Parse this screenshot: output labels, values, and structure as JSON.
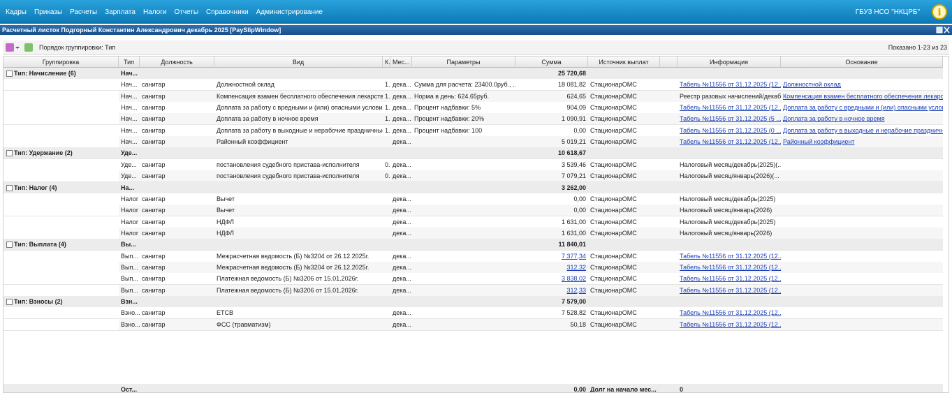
{
  "menu": {
    "items": [
      "Кадры",
      "Приказы",
      "Расчеты",
      "Зарплата",
      "Налоги",
      "Отчеты",
      "Справочники",
      "Администрирование"
    ],
    "org": "ГБУЗ НСО \"НКЦРБ\""
  },
  "window": {
    "title": "Расчетный листок Подгорный Константин Александрович декабрь 2025 [PaySlipWindow]",
    "grouping": "Порядок группировки: Тип",
    "shown": "Показано 1-23 из 23"
  },
  "table": {
    "columns": [
      "Группировка",
      "Тип",
      "Должность",
      "Вид",
      "К.",
      "Мес...",
      "Параметры",
      "Сумма",
      "Источник выплат",
      "Информация",
      "Основание"
    ],
    "groups": [
      {
        "group": "Тип: Начисление (6)",
        "type": "Нач...",
        "sum": "25 720,68",
        "rows": [
          {
            "type": "Нач...",
            "position": "санитар",
            "kind": "Должностной оклад",
            "k": "1.",
            "month": "дека...",
            "params": "Сумма для расчета: 23400.0руб., ...",
            "sum": "18 081,82",
            "source": "СтационарОМС",
            "info": "Табель №11556 от 31.12.2025 (12...",
            "info_link": true,
            "basis": "Должностной оклад"
          },
          {
            "type": "Нач...",
            "position": "санитар",
            "kind": "Компенсация взамен бесплатного обеспечения лекарстве...",
            "k": "1.",
            "month": "дека...",
            "params": "Норма в день: 624.65руб.",
            "sum": "624,65",
            "source": "СтационарОМС",
            "info": "Реестр разовых начислений/декаб...",
            "info_link": false,
            "basis": "Компенсация взамен бесплатного обеспечения лекарств..."
          },
          {
            "type": "Нач...",
            "position": "санитар",
            "kind": "Доплата за работу с вредными и (или) опасными условия...",
            "k": "1.",
            "month": "дека...",
            "params": "Процент надбавки: 5%",
            "sum": "904,09",
            "source": "СтационарОМС",
            "info": "Табель №11556 от 31.12.2025 (12...",
            "info_link": true,
            "basis": "Доплата за работу с вредными и (или) опасными услови..."
          },
          {
            "type": "Нач...",
            "position": "санитар",
            "kind": "Доплата за работу в ночное время",
            "k": "1.",
            "month": "дека...",
            "params": "Процент надбавки: 20%",
            "sum": "1 090,91",
            "source": "СтационарОМС",
            "info": "Табель №11556 от 31.12.2025 (5 ...",
            "info_link": true,
            "basis": "Доплата за работу в ночное время"
          },
          {
            "type": "Нач...",
            "position": "санитар",
            "kind": "Доплата за работу в выходные и нерабочие праздничные ...",
            "k": "1.",
            "month": "дека...",
            "params": "Процент надбавки: 100",
            "sum": "0,00",
            "source": "СтационарОМС",
            "info": "Табель №11556 от 31.12.2025 (0 ...",
            "info_link": true,
            "basis": "Доплата за работу в выходные и нерабочие праздничны..."
          },
          {
            "type": "Нач...",
            "position": "санитар",
            "kind": "Районный коэффициент",
            "month": "дека...",
            "sum": "5 019,21",
            "source": "СтационарОМС",
            "info": "Табель №11556 от 31.12.2025 (12...",
            "info_link": true,
            "basis": "Районный коэффициент"
          }
        ]
      },
      {
        "group": "Тип: Удержание (2)",
        "type": "Уде...",
        "sum": "10 618,67",
        "rows": [
          {
            "type": "Уде...",
            "position": "санитар",
            "kind": "постановления судебного пристава-исполнителя",
            "k": "0.",
            "month": "дека...",
            "sum": "3 539,46",
            "source": "СтационарОМС",
            "info": "Налоговый месяц/декабрь(2025)(...",
            "info_link": false
          },
          {
            "type": "Уде...",
            "position": "санитар",
            "kind": "постановления судебного пристава-исполнителя",
            "k": "0.",
            "month": "дека...",
            "sum": "7 079,21",
            "source": "СтационарОМС",
            "info": "Налоговый месяц/январь(2026)(...",
            "info_link": false
          }
        ]
      },
      {
        "group": "Тип: Налог (4)",
        "type": "На...",
        "sum": "3 262,00",
        "rows": [
          {
            "type": "Налог",
            "position": "санитар",
            "kind": "Вычет",
            "month": "дека...",
            "sum": "0,00",
            "source": "СтационарОМС",
            "info": "Налоговый месяц/декабрь(2025)",
            "info_link": false
          },
          {
            "type": "Налог",
            "position": "санитар",
            "kind": "Вычет",
            "month": "дека...",
            "sum": "0,00",
            "source": "СтационарОМС",
            "info": "Налоговый месяц/январь(2026)",
            "info_link": false
          },
          {
            "type": "Налог",
            "position": "санитар",
            "kind": "НДФЛ",
            "month": "дека...",
            "sum": "1 631,00",
            "source": "СтационарОМС",
            "info": "Налоговый месяц/декабрь(2025)",
            "info_link": false
          },
          {
            "type": "Налог",
            "position": "санитар",
            "kind": "НДФЛ",
            "month": "дека...",
            "sum": "1 631,00",
            "source": "СтационарОМС",
            "info": "Налоговый месяц/январь(2026)",
            "info_link": false
          }
        ]
      },
      {
        "group": "Тип: Выплата (4)",
        "type": "Вы...",
        "sum": "11 840,01",
        "rows": [
          {
            "type": "Вып...",
            "position": "санитар",
            "kind": "Межрасчетная ведомость (Б) №3204 от 26.12.2025г.",
            "month": "дека...",
            "sum": "7 377,34",
            "sum_link": true,
            "source": "СтационарОМС",
            "info": "Табель №11556 от 31.12.2025 (12...",
            "info_link": true
          },
          {
            "type": "Вып...",
            "position": "санитар",
            "kind": "Межрасчетная ведомость (Б) №3204 от 26.12.2025г.",
            "month": "дека...",
            "sum": "312,32",
            "sum_link": true,
            "source": "СтационарОМС",
            "info": "Табель №11556 от 31.12.2025 (12...",
            "info_link": true
          },
          {
            "type": "Вып...",
            "position": "санитар",
            "kind": "Платежная ведомость (Б) №3206 от 15.01.2026г.",
            "month": "дека...",
            "sum": "3 838,02",
            "sum_link": true,
            "source": "СтационарОМС",
            "info": "Табель №11556 от 31.12.2025 (12...",
            "info_link": true
          },
          {
            "type": "Вып...",
            "position": "санитар",
            "kind": "Платежная ведомость (Б) №3206 от 15.01.2026г.",
            "month": "дека...",
            "sum": "312,33",
            "sum_link": true,
            "source": "СтационарОМС",
            "info": "Табель №11556 от 31.12.2025 (12...",
            "info_link": true
          }
        ]
      },
      {
        "group": "Тип: Взносы (2)",
        "type": "Взн...",
        "sum": "7 579,00",
        "rows": [
          {
            "type": "Взно...",
            "position": "санитар",
            "kind": "ЕТСВ",
            "month": "дека...",
            "sum": "7 528,82",
            "source": "СтационарОМС",
            "info": "Табель №11556 от 31.12.2025 (12...",
            "info_link": true
          },
          {
            "type": "Взно...",
            "position": "санитар",
            "kind": "ФСС (травматизм)",
            "month": "дека...",
            "sum": "50,18",
            "source": "СтационарОМС",
            "info": "Табель №11556 от 31.12.2025 (12...",
            "info_link": true
          }
        ]
      }
    ],
    "footer": {
      "type": "Ост...",
      "sum": "0,00",
      "source": "Долг на начало мес...",
      "info": "0"
    }
  }
}
